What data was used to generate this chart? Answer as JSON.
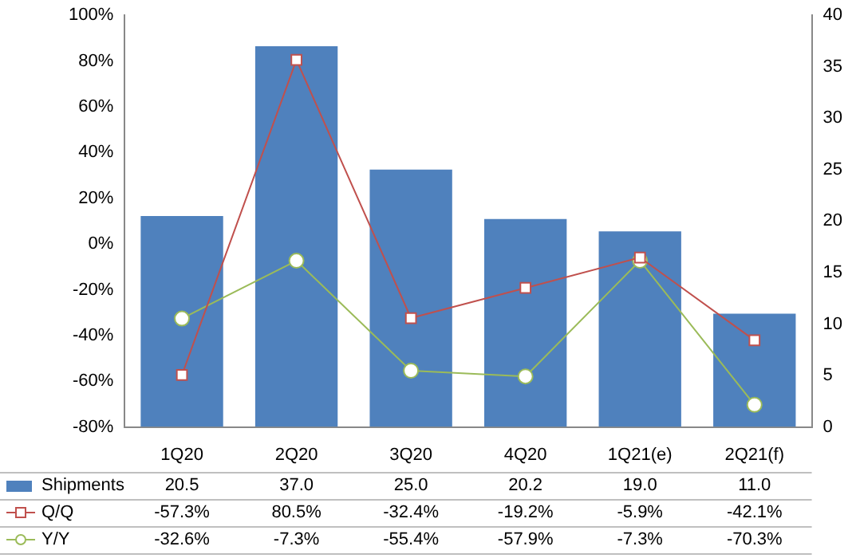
{
  "chart_data": {
    "type": "bar",
    "categories": [
      "1Q20",
      "2Q20",
      "3Q20",
      "4Q20",
      "1Q21(e)",
      "2Q21(f)"
    ],
    "series": [
      {
        "name": "Shipments",
        "axis": "y2",
        "color": "#4f81bd",
        "values": [
          20.5,
          37.0,
          25.0,
          20.2,
          19.0,
          11.0
        ],
        "value_labels": [
          "20.5",
          "37.0",
          "25.0",
          "20.2",
          "19.0",
          "11.0"
        ]
      },
      {
        "name": "Q/Q",
        "type": "line",
        "axis": "y",
        "color": "#c0504d",
        "marker": "square",
        "values": [
          -57.3,
          80.5,
          -32.4,
          -19.2,
          -5.9,
          -42.1
        ],
        "value_labels": [
          "-57.3%",
          "80.5%",
          "-32.4%",
          "-19.2%",
          "-5.9%",
          "-42.1%"
        ]
      },
      {
        "name": "Y/Y",
        "type": "line",
        "axis": "y",
        "color": "#9bbb59",
        "marker": "circle",
        "values": [
          -32.6,
          -7.3,
          -55.4,
          -57.9,
          -7.3,
          -70.3
        ],
        "value_labels": [
          "-32.6%",
          "-7.3%",
          "-55.4%",
          "-57.9%",
          "-7.3%",
          "-70.3%"
        ]
      }
    ],
    "ylim": [
      -80,
      100
    ],
    "yticks": [
      {
        "value": -80,
        "label": "-80%"
      },
      {
        "value": -60,
        "label": "-60%"
      },
      {
        "value": -40,
        "label": "-40%"
      },
      {
        "value": -20,
        "label": "-20%"
      },
      {
        "value": 0,
        "label": "0%"
      },
      {
        "value": 20,
        "label": "20%"
      },
      {
        "value": 40,
        "label": "40%"
      },
      {
        "value": 60,
        "label": "60%"
      },
      {
        "value": 80,
        "label": "80%"
      },
      {
        "value": 100,
        "label": "100%"
      }
    ],
    "y2lim": [
      0,
      40
    ],
    "y2ticks": [
      0,
      5,
      10,
      15,
      20,
      25,
      30,
      35,
      40
    ],
    "grid": false,
    "legend": "bottom left",
    "line_style": "solid"
  }
}
